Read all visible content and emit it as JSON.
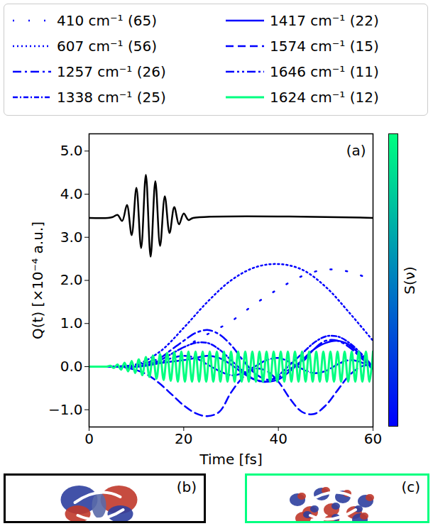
{
  "chart_data": {
    "type": "line",
    "xlabel": "Time [fs]",
    "ylabel": "Q(t) [×10⁻⁴ a.u.]",
    "xlim": [
      0,
      60
    ],
    "ylim": [
      -1.4,
      5.4
    ],
    "xticks": [
      0,
      20,
      40,
      60
    ],
    "yticks": [
      -1,
      0,
      1,
      2,
      3,
      4,
      5
    ],
    "legend": "top",
    "annotations": [
      "(a)"
    ],
    "colorbar": {
      "label": "S(ν)",
      "colors": [
        "#0000ff",
        "#00ff80"
      ]
    },
    "series": [
      {
        "name": "410 cm⁻¹ (65)",
        "color": "#0000ff",
        "line_style": "loosely_dotted",
        "x": [
          0,
          5,
          10,
          15,
          20,
          25,
          30,
          35,
          40,
          45,
          50,
          55,
          60
        ],
        "values": [
          0,
          0,
          0.05,
          0.2,
          0.45,
          0.75,
          1.05,
          1.45,
          1.8,
          2.1,
          2.25,
          2.2,
          2.0
        ]
      },
      {
        "name": "607 cm⁻¹ (56)",
        "color": "#0000ff",
        "line_style": "dotted",
        "x": [
          0,
          5,
          10,
          15,
          20,
          25,
          30,
          35,
          40,
          45,
          50,
          55,
          60
        ],
        "values": [
          0,
          0,
          0.05,
          0.35,
          0.9,
          1.5,
          2.0,
          2.3,
          2.38,
          2.25,
          1.85,
          1.25,
          0.6
        ]
      },
      {
        "name": "1257 cm⁻¹ (26)",
        "color": "#0000ff",
        "line_style": "dashdot",
        "x": [
          0,
          2.5,
          5,
          7.5,
          10,
          12.5,
          15,
          17.5,
          20,
          22.5,
          25,
          27.5,
          30,
          32.5,
          35,
          37.5,
          40,
          42.5,
          45,
          47.5,
          50,
          52.5,
          55,
          57.5,
          60
        ],
        "values": [
          0,
          0,
          0,
          0.01,
          0.04,
          0.1,
          0.2,
          0.4,
          0.6,
          0.78,
          0.85,
          0.75,
          0.5,
          0.15,
          -0.15,
          -0.3,
          -0.25,
          -0.05,
          0.1,
          0.4,
          0.6,
          0.6,
          0.45,
          0.2,
          -0.05
        ]
      },
      {
        "name": "1338 cm⁻¹ (25)",
        "color": "#0000ff",
        "line_style": "densely_dashdot",
        "x": [
          0,
          2.5,
          5,
          7.5,
          10,
          12.5,
          15,
          17.5,
          20,
          22.5,
          25,
          27.5,
          30,
          32.5,
          35,
          37.5,
          40,
          42.5,
          45,
          47.5,
          50,
          52.5,
          55,
          57.5,
          60
        ],
        "values": [
          0,
          0,
          0,
          0,
          0,
          0.05,
          0.15,
          0.3,
          0.45,
          0.55,
          0.55,
          0.4,
          0.15,
          -0.1,
          -0.3,
          -0.35,
          -0.2,
          0.05,
          0.3,
          0.55,
          0.7,
          0.7,
          0.55,
          0.3,
          0.0
        ]
      },
      {
        "name": "1417 cm⁻¹ (22)",
        "color": "#0000ff",
        "line_style": "solid",
        "x": [
          0,
          2.5,
          5,
          7.5,
          10,
          12.5,
          15,
          17.5,
          20,
          22.5,
          25,
          27.5,
          30,
          32.5,
          35,
          37.5,
          40,
          42.5,
          45,
          47.5,
          50,
          52.5,
          55,
          57.5,
          60
        ],
        "values": [
          0,
          0,
          0,
          0,
          0,
          0.03,
          0.08,
          0.12,
          0.15,
          0.2,
          0.25,
          0.2,
          0.05,
          -0.15,
          -0.3,
          -0.35,
          -0.3,
          -0.1,
          0.15,
          0.4,
          0.55,
          0.6,
          0.5,
          0.25,
          0.0
        ]
      },
      {
        "name": "1574 cm⁻¹ (15)",
        "color": "#0000ff",
        "line_style": "dashed",
        "x": [
          0,
          2.5,
          5,
          7.5,
          10,
          12.5,
          15,
          17.5,
          20,
          22.5,
          25,
          27.5,
          30,
          32.5,
          35,
          37.5,
          40,
          42.5,
          45,
          47.5,
          50,
          52.5,
          55,
          57.5,
          60
        ],
        "values": [
          0,
          0,
          0,
          -0.02,
          -0.08,
          -0.2,
          -0.4,
          -0.65,
          -0.9,
          -1.08,
          -1.15,
          -1.05,
          -0.6,
          -0.25,
          -0.05,
          -0.1,
          -0.35,
          -0.75,
          -1.05,
          -1.1,
          -0.9,
          -0.55,
          -0.2,
          0.0,
          0.05
        ]
      },
      {
        "name": "1646 cm⁻¹ (11)",
        "color": "#0000ff",
        "line_style": "dashdotdot",
        "x": [
          0,
          2.5,
          5,
          7.5,
          10,
          12.5,
          15,
          17.5,
          20,
          22.5,
          25,
          27.5,
          30,
          32.5,
          35,
          37.5,
          40,
          42.5,
          45,
          47.5,
          50,
          52.5,
          55,
          57.5,
          60
        ],
        "values": [
          0,
          0,
          0,
          0,
          0,
          0.05,
          0.1,
          0.2,
          0.25,
          0.2,
          0.05,
          -0.1,
          -0.2,
          -0.15,
          0.0,
          0.15,
          0.2,
          0.1,
          -0.05,
          -0.15,
          -0.1,
          0.05,
          0.15,
          0.1,
          -0.05
        ]
      },
      {
        "name": "1624 cm⁻¹ (12)",
        "color": "#00ff80",
        "line_style": "solid",
        "x": [
          0,
          0.75,
          1.5,
          2.25,
          3,
          3.75,
          4.5,
          5.25,
          6,
          6.75,
          7.5,
          8.25,
          9,
          9.75,
          10.5,
          11.25,
          12,
          12.75,
          13.5,
          14.25,
          15,
          15.75,
          16.5,
          17.25,
          18,
          18.75,
          19.5,
          20.25,
          21,
          21.75,
          22.5,
          23.25,
          24,
          24.75,
          25.5,
          26.25,
          27,
          27.75,
          28.5,
          29.25,
          30,
          30.75,
          31.5,
          32.25,
          33,
          33.75,
          34.5,
          35.25,
          36,
          36.75,
          37.5,
          38.25,
          39,
          39.75,
          40.5,
          41.25,
          42,
          42.75,
          43.5,
          44.25,
          45,
          45.75,
          46.5,
          47.25,
          48,
          48.75,
          49.5,
          50.25,
          51,
          51.75,
          52.5,
          53.25,
          54,
          54.75,
          55.5,
          56.25,
          57,
          57.75,
          58.5,
          59.25,
          60
        ],
        "values": [
          0,
          0,
          0,
          0,
          0,
          0,
          0.02,
          -0.03,
          0.05,
          -0.07,
          0.09,
          -0.11,
          0.13,
          -0.15,
          0.17,
          -0.2,
          0.22,
          -0.24,
          0.26,
          -0.28,
          0.29,
          -0.31,
          0.32,
          -0.33,
          0.34,
          -0.35,
          0.35,
          -0.35,
          0.35,
          -0.35,
          0.35,
          -0.35,
          0.35,
          -0.35,
          0.35,
          -0.35,
          0.35,
          -0.35,
          0.35,
          -0.35,
          0.35,
          -0.35,
          0.35,
          -0.35,
          0.35,
          -0.35,
          0.35,
          -0.35,
          0.35,
          -0.35,
          0.35,
          -0.35,
          0.35,
          -0.35,
          0.35,
          -0.35,
          0.35,
          -0.35,
          0.35,
          -0.35,
          0.35,
          -0.35,
          0.35,
          -0.35,
          0.35,
          -0.35,
          0.35,
          -0.35,
          0.35,
          -0.35,
          0.35,
          -0.35,
          0.35,
          -0.35,
          0.35,
          -0.35,
          0.35,
          -0.35,
          0.35,
          -0.35,
          0.35
        ]
      },
      {
        "color": "#000000",
        "line_style": "solid",
        "x": [
          0,
          4,
          5,
          6,
          7,
          8,
          9,
          10,
          11,
          12,
          13,
          14,
          15,
          16,
          17,
          18,
          19,
          20,
          21,
          22,
          60
        ],
        "values": [
          3.45,
          3.45,
          3.47,
          3.52,
          3.38,
          3.75,
          3.05,
          4.15,
          2.75,
          4.45,
          2.55,
          4.3,
          2.8,
          3.95,
          3.1,
          3.7,
          3.3,
          3.55,
          3.4,
          3.45,
          3.45
        ]
      }
    ]
  },
  "panels": [
    {
      "label": "(b)",
      "color": "#000000"
    },
    {
      "label": "(c)",
      "color": "#00ff80"
    }
  ]
}
